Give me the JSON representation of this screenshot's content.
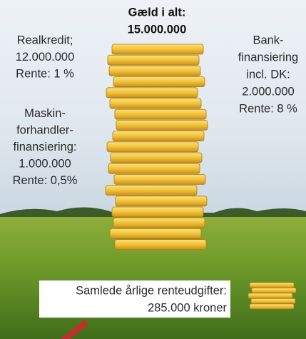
{
  "total": {
    "label": "Gæld i alt:",
    "amount": "15.000.000"
  },
  "left_items": [
    {
      "lines": [
        "Realkredit;",
        "12.000.000",
        "Rente: 1 %"
      ]
    },
    {
      "lines": [
        "Maskin-",
        "forhandler-",
        "finansiering:",
        "1.000.000",
        "Rente: 0,5%"
      ]
    }
  ],
  "right_items": [
    {
      "lines": [
        "Bank-",
        "finansiering",
        "incl. DK:",
        "2.000.000",
        "Rente: 8 %"
      ]
    }
  ],
  "summary": {
    "lines": [
      "Samlede årlige renteudgifter:",
      "285.000 kroner"
    ]
  }
}
